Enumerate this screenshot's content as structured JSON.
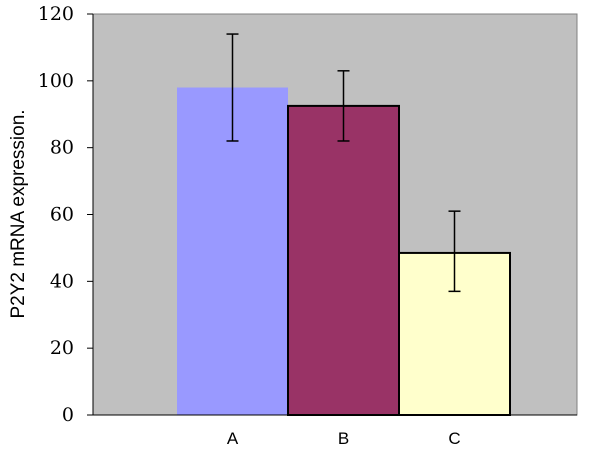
{
  "chart_data": {
    "type": "bar",
    "categories": [
      "A",
      "B",
      "C"
    ],
    "values": [
      98,
      92.5,
      48.5
    ],
    "error_bars": [
      {
        "low": 82,
        "high": 114
      },
      {
        "low": 82,
        "high": 103
      },
      {
        "low": 37,
        "high": 61
      }
    ],
    "bar_colors": [
      "#9999ff",
      "#993366",
      "#ffffcc"
    ],
    "bar_outlines": [
      "none",
      "#000000",
      "#000000"
    ],
    "plot_background": "#c0c0c0",
    "title": "",
    "xlabel": "",
    "ylabel": "P2Y2 mRNA expression.",
    "ylim": [
      0,
      120
    ],
    "yticks": [
      "0",
      "20",
      "40",
      "60",
      "80",
      "100",
      "120"
    ],
    "grid": false,
    "legend": "none"
  }
}
